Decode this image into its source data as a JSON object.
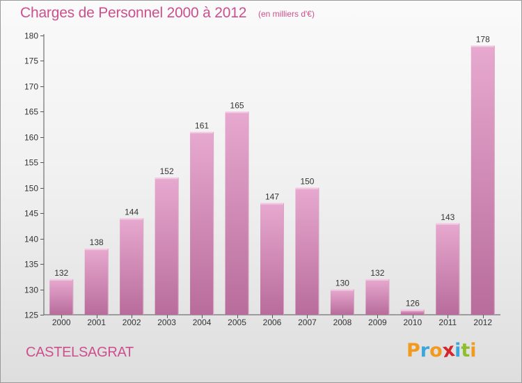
{
  "title": "Charges de Personnel 2000 à 2012",
  "subtitle": "(en milliers d'€)",
  "location": "CASTELSAGRAT",
  "logo": {
    "text": "Proxiti",
    "colors": [
      "#f29a1e",
      "#3aa7dc",
      "#f29a1e",
      "#d6262b",
      "#3aa7dc",
      "#8cbf2b",
      "#f29a1e"
    ]
  },
  "colors": {
    "bar_top": "#e7a9cf",
    "bar_bottom": "#b86c9b",
    "text_accent": "#cc4f8e"
  },
  "chart_data": {
    "type": "bar",
    "categories": [
      "2000",
      "2001",
      "2002",
      "2003",
      "2004",
      "2005",
      "2006",
      "2007",
      "2008",
      "2009",
      "2010",
      "2011",
      "2012"
    ],
    "values": [
      132,
      138,
      144,
      152,
      161,
      165,
      147,
      150,
      130,
      132,
      126,
      143,
      178
    ],
    "ylim": [
      125,
      180
    ],
    "yticks": [
      125,
      130,
      135,
      140,
      145,
      150,
      155,
      160,
      165,
      170,
      175,
      180
    ],
    "xlabel": "",
    "ylabel": "",
    "grid": false,
    "data_labels": true
  }
}
